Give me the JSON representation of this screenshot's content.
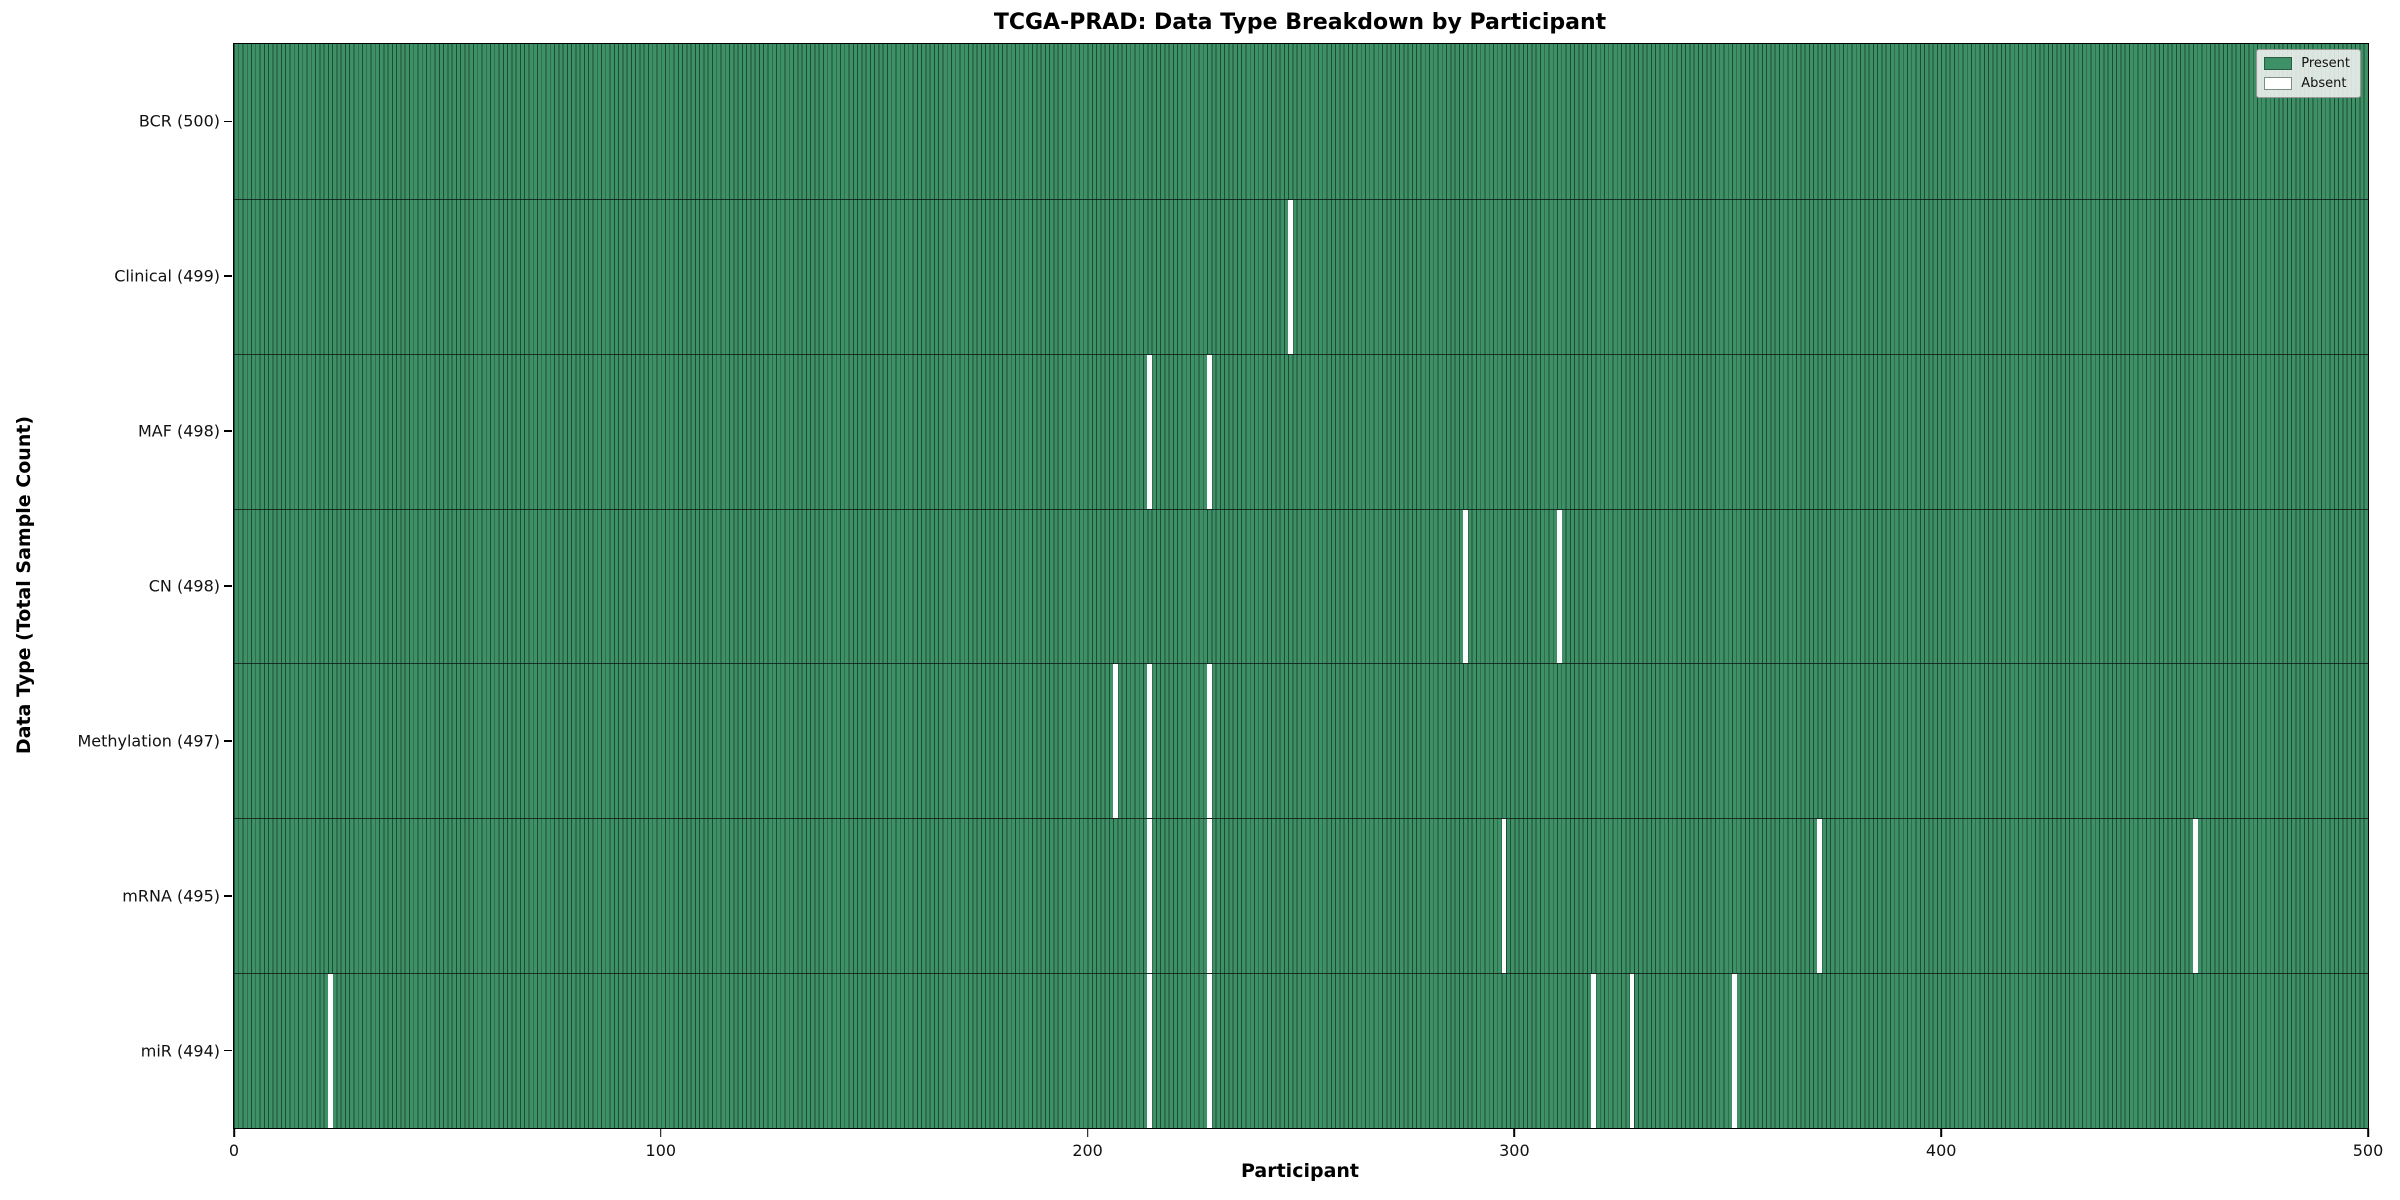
{
  "title": "TCGA-PRAD: Data Type Breakdown by Participant",
  "chart_data": {
    "type": "heatmap",
    "title": "TCGA-PRAD: Data Type Breakdown by Participant",
    "xlabel": "Participant",
    "ylabel": "Data Type (Total Sample Count)",
    "x_range": [
      0,
      500
    ],
    "x_ticks": [
      0,
      100,
      200,
      300,
      400,
      500
    ],
    "n_participants": 500,
    "grid": false,
    "legend": {
      "position": "upper right",
      "entries": [
        {
          "label": "Present",
          "color": "#3e9066"
        },
        {
          "label": "Absent",
          "color": "#ffffff"
        }
      ]
    },
    "colors": {
      "present": "#3e9066",
      "present_edge": "#1d4c34",
      "absent": "#ffffff",
      "row_separator": "rgba(15, 25, 20, 0.8)",
      "axis": "#000000"
    },
    "rows": [
      {
        "data_type": "BCR",
        "label": "BCR (500)",
        "total": 500,
        "absent_participants": []
      },
      {
        "data_type": "Clinical",
        "label": "Clinical (499)",
        "total": 499,
        "absent_participants": [
          247
        ]
      },
      {
        "data_type": "MAF",
        "label": "MAF (498)",
        "total": 498,
        "absent_participants": [
          214,
          228
        ]
      },
      {
        "data_type": "CN",
        "label": "CN (498)",
        "total": 498,
        "absent_participants": [
          288,
          310
        ]
      },
      {
        "data_type": "Methylation",
        "label": "Methylation (497)",
        "total": 497,
        "absent_participants": [
          206,
          214,
          228
        ]
      },
      {
        "data_type": "mRNA",
        "label": "mRNA (495)",
        "total": 495,
        "absent_participants": [
          214,
          228,
          297,
          371,
          459
        ]
      },
      {
        "data_type": "miR",
        "label": "miR (494)",
        "total": 494,
        "absent_participants": [
          22,
          214,
          228,
          318,
          327,
          351
        ]
      }
    ]
  }
}
